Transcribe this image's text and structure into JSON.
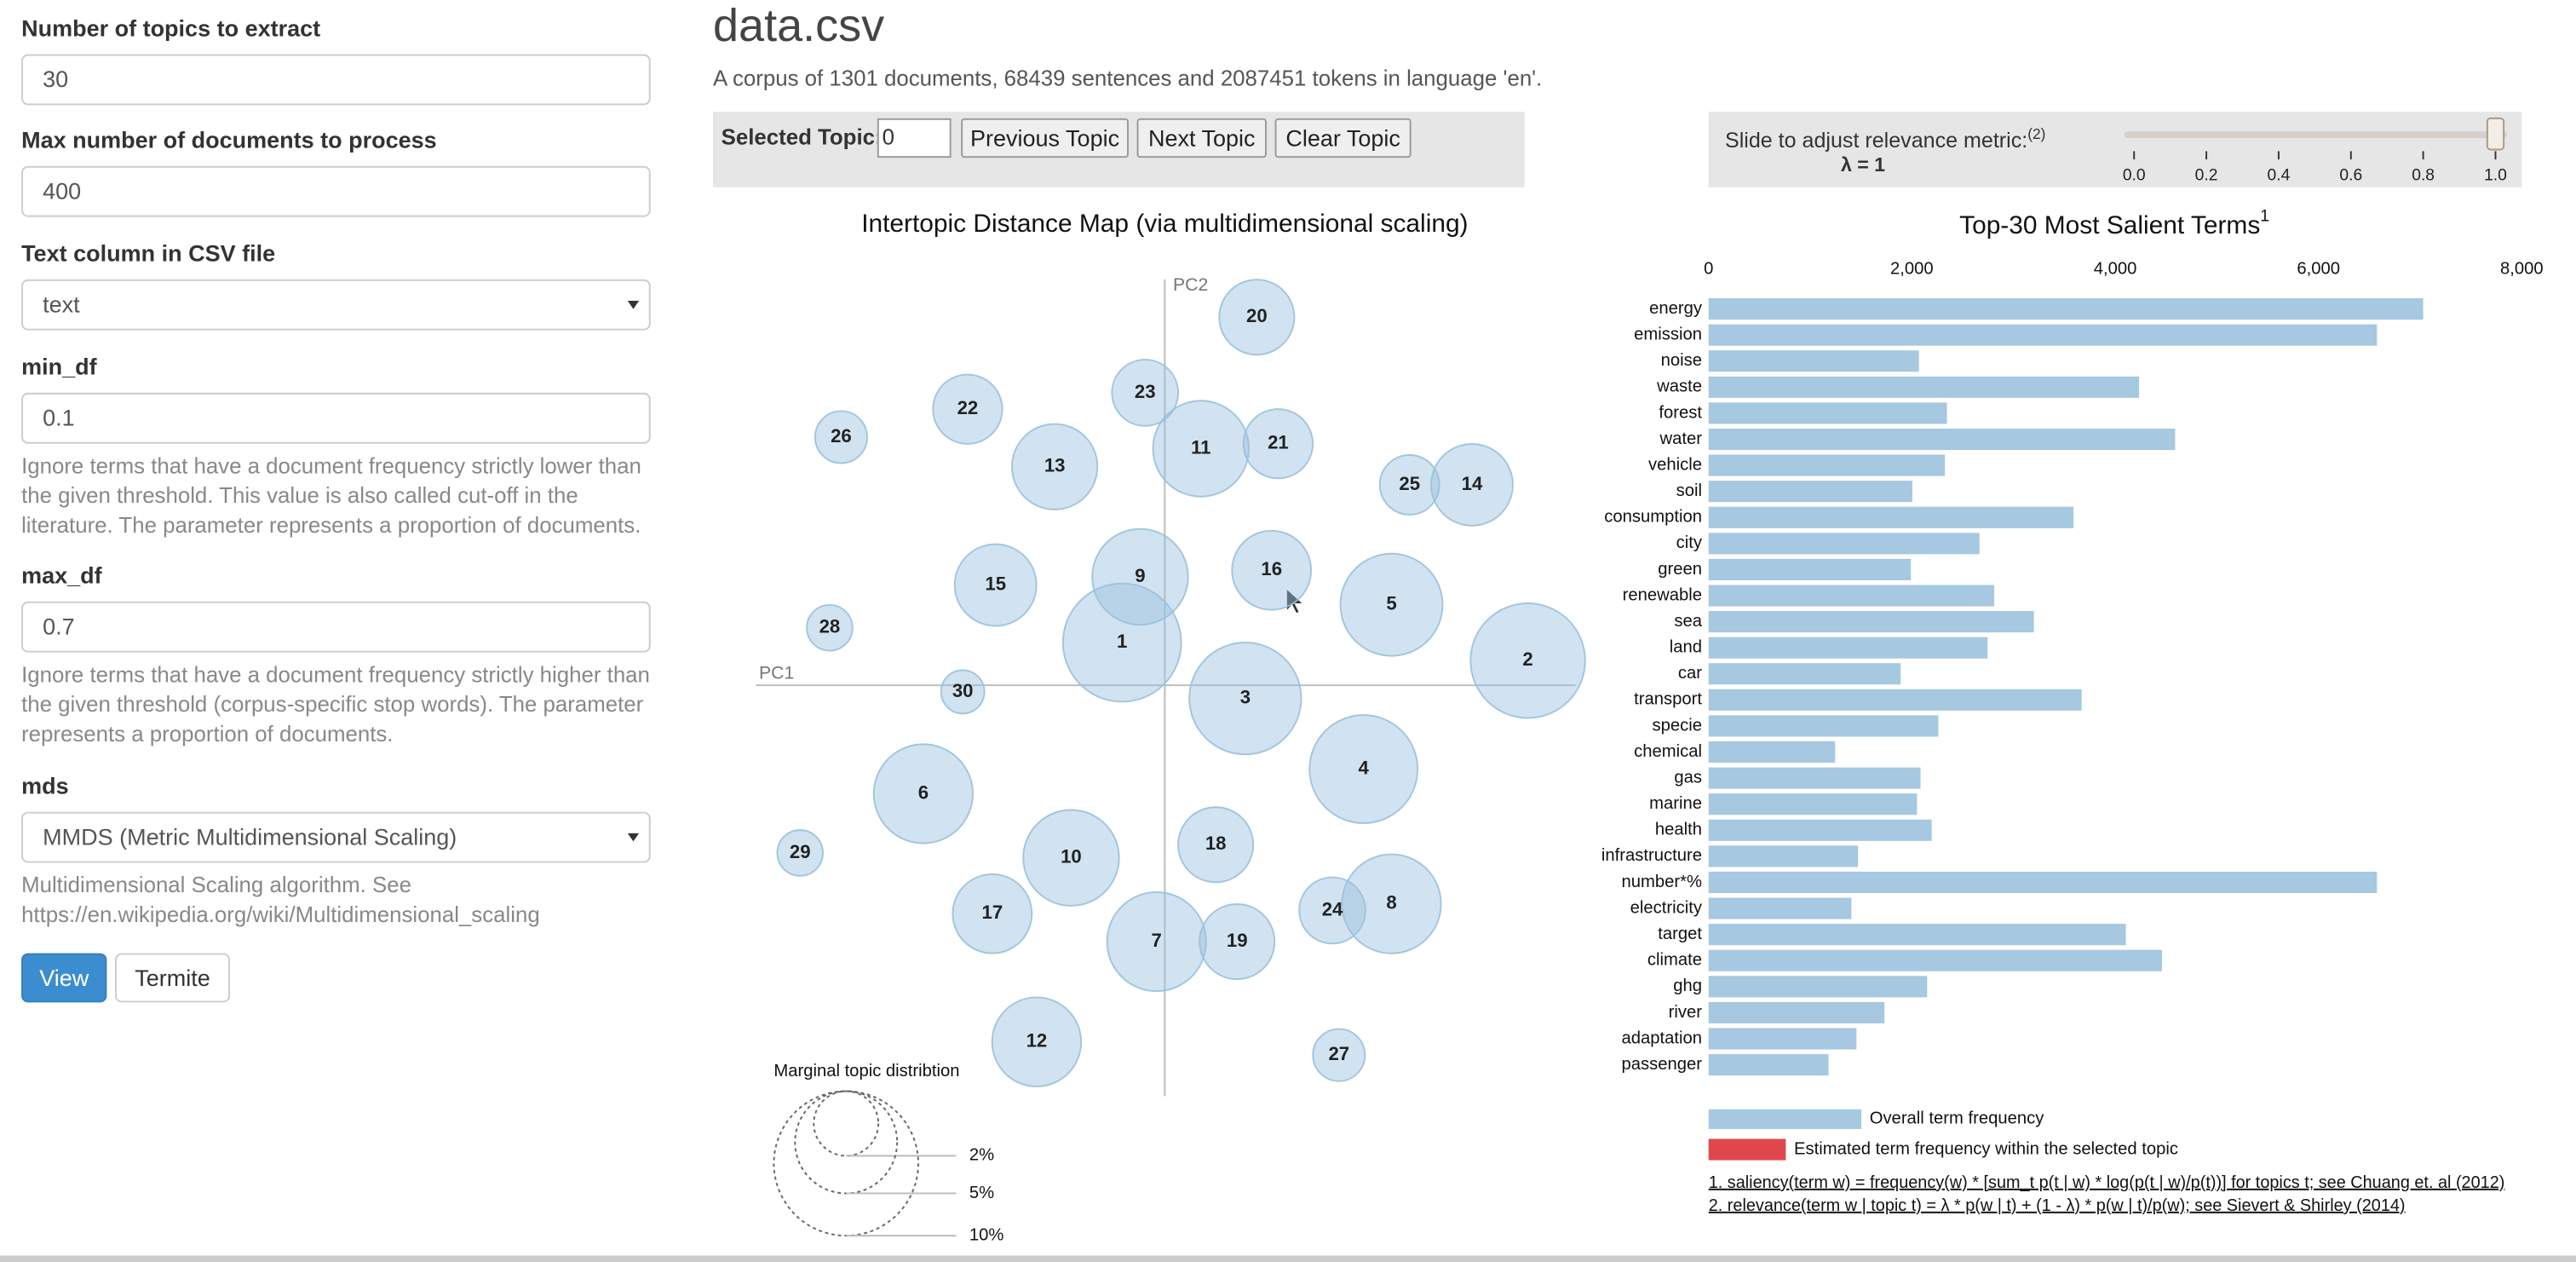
{
  "form": {
    "fields": [
      {
        "label": "Number of topics to extract",
        "value": "30",
        "kind": "text"
      },
      {
        "label": "Max number of documents to process",
        "value": "400",
        "kind": "text"
      },
      {
        "label": "Text column in CSV file",
        "value": "text",
        "kind": "select"
      },
      {
        "label": "min_df",
        "value": "0.1",
        "kind": "text",
        "help": "Ignore terms that have a document frequency strictly lower than the given threshold. This value is also called cut-off in the literature. The parameter represents a proportion of documents."
      },
      {
        "label": "max_df",
        "value": "0.7",
        "kind": "text",
        "help": "Ignore terms that have a document frequency strictly higher than the given threshold (corpus-specific stop words). The parameter represents a proportion of documents."
      },
      {
        "label": "mds",
        "value": "MMDS (Metric Multidimensional Scaling)",
        "kind": "select",
        "help": "Multidimensional Scaling algorithm. See https://en.wikipedia.org/wiki/Multidimensional_scaling"
      }
    ],
    "buttons": [
      "View",
      "Termite"
    ]
  },
  "header": {
    "title": "data.csv",
    "subtitle": "A corpus of 1301 documents, 68439 sentences and 2087451 tokens in language 'en'."
  },
  "topic_controls": {
    "label": "Selected Topic:",
    "value": "0",
    "buttons": [
      "Previous Topic",
      "Next Topic",
      "Clear Topic"
    ]
  },
  "relevance_slider": {
    "label": "Slide to adjust relevance metric:",
    "note": "(2)",
    "lambda_label": "λ = 1",
    "value": 1,
    "range": [
      0,
      1
    ],
    "ticks": [
      {
        "value": 0,
        "label": "0.0"
      },
      {
        "value": 0.2,
        "label": "0.2"
      },
      {
        "value": 0.4,
        "label": "0.4"
      },
      {
        "value": 0.6,
        "label": "0.6"
      },
      {
        "value": 0.8,
        "label": "0.8"
      },
      {
        "value": 1,
        "label": "1.0"
      }
    ]
  },
  "chart_data": [
    {
      "type": "scatter",
      "title": "Intertopic Distance Map (via multidimensional scaling)",
      "x_label": "PC1",
      "y_label": "PC2",
      "labels": [
        "1",
        "2",
        "3",
        "4",
        "5",
        "6",
        "7",
        "8",
        "9",
        "10",
        "11",
        "12",
        "13",
        "14",
        "15",
        "16",
        "17",
        "18",
        "19",
        "20",
        "21",
        "22",
        "23",
        "24",
        "25",
        "26",
        "27",
        "28",
        "29",
        "30"
      ],
      "x": [
        -26,
        221,
        49,
        121,
        138,
        -147,
        -5,
        138,
        -15,
        -57,
        22,
        -78,
        -67,
        187,
        -103,
        65,
        -105,
        31,
        44,
        56,
        69,
        -120,
        -12,
        102,
        149,
        -197,
        106,
        -204,
        -222,
        -123
      ],
      "y": [
        26,
        15,
        -8,
        -51,
        49,
        -66,
        -156,
        -133,
        66,
        -105,
        144,
        -217,
        133,
        122,
        61,
        70,
        -139,
        -97,
        -156,
        224,
        147,
        168,
        178,
        -137,
        122,
        151,
        -225,
        35,
        -102,
        -4
      ],
      "sizes": [
        6.7,
        6.3,
        6.0,
        5.6,
        5.0,
        4.7,
        4.7,
        4.7,
        4.4,
        4.4,
        4.4,
        3.8,
        3.5,
        3.2,
        3.2,
        3.0,
        3.0,
        2.7,
        2.7,
        2.7,
        2.3,
        2.3,
        2.1,
        2.1,
        1.7,
        1.3,
        1.3,
        1.0,
        1.0,
        0.9
      ],
      "xlim": [
        -250,
        250
      ],
      "ylim": [
        -250,
        250
      ],
      "color": "#9ac1dd",
      "size_legend": {
        "title": "Marginal topic distribtion",
        "ticks": [
          {
            "value": 2,
            "label": "2%"
          },
          {
            "value": 5,
            "label": "5%"
          },
          {
            "value": 10,
            "label": "10%"
          }
        ]
      }
    },
    {
      "type": "bar",
      "orientation": "horizontal",
      "title": "Top-30 Most Salient Terms",
      "title_note": "1",
      "categories": [
        "energy",
        "emission",
        "noise",
        "waste",
        "forest",
        "water",
        "vehicle",
        "soil",
        "consumption",
        "city",
        "green",
        "renewable",
        "sea",
        "land",
        "car",
        "transport",
        "specie",
        "chemical",
        "gas",
        "marine",
        "health",
        "infrastructure",
        "number*%",
        "electricity",
        "target",
        "climate",
        "ghg",
        "river",
        "adaptation",
        "passenger"
      ],
      "series": [
        {
          "name": "Overall term frequency",
          "color": "#a6c8e0",
          "values": [
            7030,
            6575,
            2070,
            4235,
            2345,
            4590,
            2325,
            2005,
            3590,
            2665,
            1990,
            2810,
            3200,
            2745,
            1890,
            3670,
            2260,
            1245,
            2085,
            2050,
            2195,
            1470,
            6575,
            1405,
            4105,
            4460,
            2150,
            1730,
            1455,
            1180
          ]
        },
        {
          "name": "Estimated term frequency within the selected topic",
          "color": "#e0474c",
          "values": [
            null,
            null,
            null,
            null,
            null,
            null,
            null,
            null,
            null,
            null,
            null,
            null,
            null,
            null,
            null,
            null,
            null,
            null,
            null,
            null,
            null,
            null,
            null,
            null,
            null,
            null,
            null,
            null,
            null,
            null
          ]
        }
      ],
      "xlim": [
        0,
        8000
      ],
      "xticks": [
        0,
        {
          "value": 2000,
          "label": "2,000"
        },
        {
          "value": 4000,
          "label": "4,000"
        },
        {
          "value": 6000,
          "label": "6,000"
        },
        {
          "value": 8000,
          "label": "8,000"
        }
      ],
      "footnotes": [
        "1. saliency(term w) = frequency(w) * [sum_t p(t | w) * log(p(t | w)/p(t))] for topics t; see Chuang et. al (2012)",
        "2. relevance(term w | topic t) = λ * p(w | t) + (1 - λ) * p(w | t)/p(w); see Sievert & Shirley (2014)"
      ]
    }
  ]
}
